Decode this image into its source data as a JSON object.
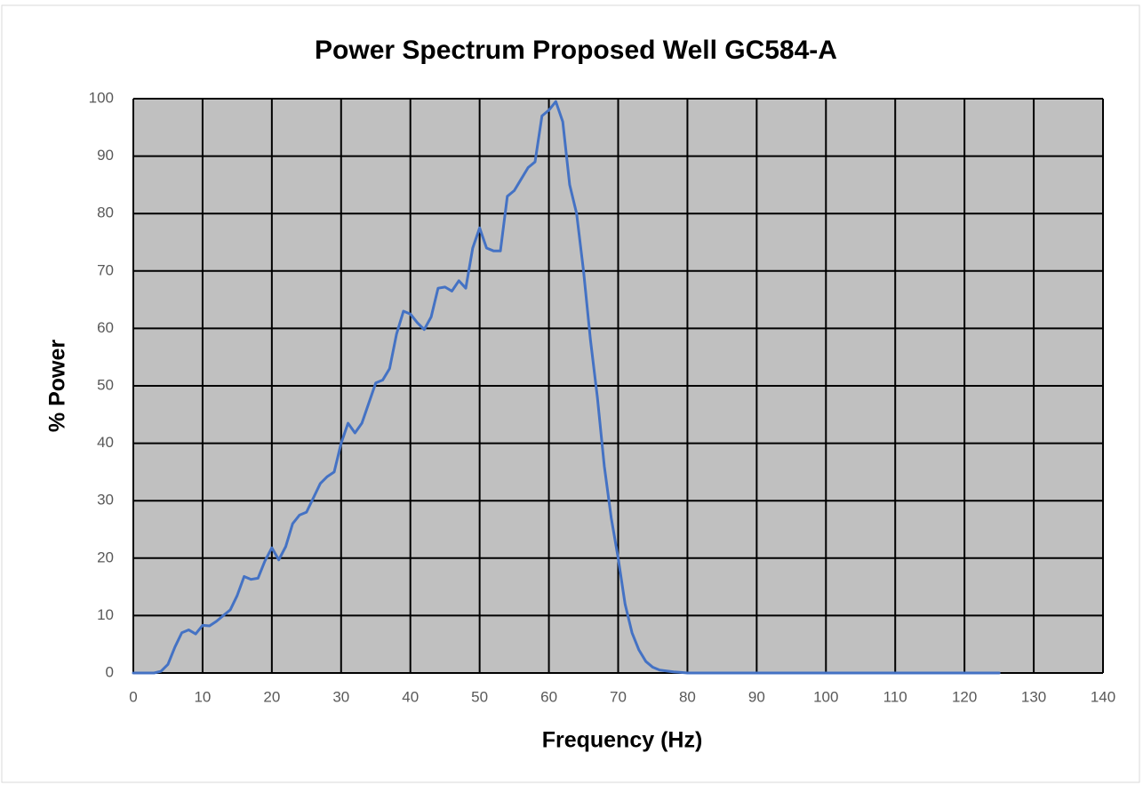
{
  "chart_data": {
    "type": "line",
    "title": "Power Spectrum Proposed Well GC584-A",
    "x_label": "Frequency (Hz)",
    "y_label": "% Power",
    "x": [
      0,
      1,
      2,
      3,
      4,
      5,
      6,
      7,
      8,
      9,
      10,
      11,
      12,
      13,
      14,
      15,
      16,
      17,
      18,
      19,
      20,
      21,
      22,
      23,
      24,
      25,
      26,
      27,
      28,
      29,
      30,
      31,
      32,
      33,
      34,
      35,
      36,
      37,
      38,
      39,
      40,
      41,
      42,
      43,
      44,
      45,
      46,
      47,
      48,
      49,
      50,
      51,
      52,
      53,
      54,
      55,
      56,
      57,
      58,
      59,
      60,
      61,
      62,
      63,
      64,
      65,
      66,
      67,
      68,
      69,
      70,
      71,
      72,
      73,
      74,
      75,
      76,
      78,
      80,
      90,
      100,
      110,
      120,
      125
    ],
    "series": [
      {
        "name": "% Power",
        "color": "#4472c4",
        "values": [
          0,
          0,
          0,
          0,
          0.3,
          1.5,
          4.5,
          7,
          7.5,
          6.8,
          8.3,
          8.2,
          9,
          10,
          11,
          13.5,
          16.8,
          16.3,
          16.5,
          19.5,
          21.8,
          19.7,
          22,
          26,
          27.5,
          28,
          30.5,
          33,
          34.2,
          35,
          40,
          43.5,
          41.8,
          43.5,
          47,
          50.5,
          51,
          53,
          59,
          63,
          62.5,
          61,
          59.8,
          62,
          67,
          67.2,
          66.5,
          68.3,
          67,
          74,
          77.5,
          74,
          73.5,
          73.5,
          83,
          84,
          86,
          88,
          89,
          97,
          98,
          99.5,
          96,
          85,
          80,
          70,
          58,
          48,
          36,
          27,
          20,
          12,
          7,
          4,
          2,
          1,
          0.5,
          0.2,
          0,
          0,
          0,
          0,
          0,
          0
        ]
      }
    ],
    "xlim": [
      0,
      140
    ],
    "xticks": [
      0,
      10,
      20,
      30,
      40,
      50,
      60,
      70,
      80,
      90,
      100,
      110,
      120,
      130,
      140
    ],
    "ylim": [
      0,
      100
    ],
    "yticks": [
      0,
      10,
      20,
      30,
      40,
      50,
      60,
      70,
      80,
      90,
      100
    ],
    "grid": true,
    "background": "#c0c0c0"
  }
}
